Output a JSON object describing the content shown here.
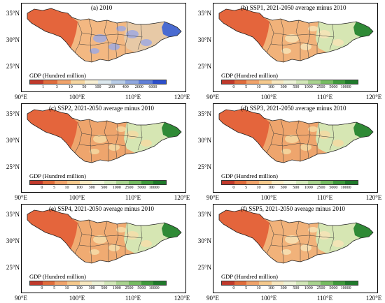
{
  "lat_labels": [
    "35°N",
    "30°N",
    "25°N"
  ],
  "lon_labels": [
    "90°E",
    "100°E",
    "110°E",
    "120°E"
  ],
  "legend_title": "GDP (Hundred million)",
  "panels": [
    {
      "id": "a",
      "title": "(a) 2010",
      "legend_colors": [
        "#c0392b",
        "#e06c3c",
        "#f0a36b",
        "#f5d5a0",
        "#f7efd4",
        "#dce8ee",
        "#b9cde7",
        "#8fa7df",
        "#5f7fd8",
        "#2c4fcc"
      ],
      "legend_ticks": [
        "1",
        "3",
        "10",
        "50",
        "100",
        "200",
        "400",
        "2000",
        "6000"
      ],
      "west_color": "#e4653c",
      "mid_color": "#f3b882",
      "east_color": "#e7c9a6",
      "tail_color": "#4a6bd1",
      "blob_color": "#9fa9e0"
    },
    {
      "id": "b",
      "title": "(b) SSP1, 2021-2050 average minus 2010",
      "legend_colors": [
        "#c0392b",
        "#e06c3c",
        "#f0a36b",
        "#f5c98d",
        "#f8e8c0",
        "#eef3d8",
        "#d2e7b8",
        "#a9d38f",
        "#76bc62",
        "#3f9a3c",
        "#1f7a2b"
      ],
      "legend_ticks": [
        "0",
        "5",
        "10",
        "100",
        "300",
        "500",
        "1000",
        "2500",
        "5000",
        "10000"
      ],
      "west_color": "#e4653c",
      "mid_color": "#f1b27a",
      "east_color": "#d6e6b3",
      "tail_color": "#2f8a36",
      "blob_color": "#f7e3b6"
    },
    {
      "id": "c",
      "title": "(c) SSP2, 2021-2050 average minus 2010",
      "legend_colors": [
        "#c0392b",
        "#e06c3c",
        "#f0a36b",
        "#f5c98d",
        "#f8e8c0",
        "#eef3d8",
        "#d2e7b8",
        "#a9d38f",
        "#76bc62",
        "#3f9a3c",
        "#1f7a2b"
      ],
      "legend_ticks": [
        "0",
        "5",
        "10",
        "100",
        "300",
        "500",
        "1000",
        "2500",
        "5000",
        "10000"
      ],
      "west_color": "#e4653c",
      "mid_color": "#eea56d",
      "east_color": "#d6e6b3",
      "tail_color": "#2f8a36",
      "blob_color": "#f5d9a2"
    },
    {
      "id": "d",
      "title": "(d) SSP3, 2021-2050 average minus 2010",
      "legend_colors": [
        "#c0392b",
        "#e06c3c",
        "#f0a36b",
        "#f5c98d",
        "#f8e8c0",
        "#eef3d8",
        "#d2e7b8",
        "#a9d38f",
        "#76bc62",
        "#3f9a3c",
        "#1f7a2b"
      ],
      "legend_ticks": [
        "0",
        "5",
        "10",
        "100",
        "300",
        "500",
        "1000",
        "2500",
        "5000",
        "10000"
      ],
      "west_color": "#e4653c",
      "mid_color": "#eea56d",
      "east_color": "#d6e6b3",
      "tail_color": "#2f8a36",
      "blob_color": "#f5d9a2"
    },
    {
      "id": "e",
      "title": "(e) SSP4, 2021-2050 average minus 2010",
      "legend_colors": [
        "#c0392b",
        "#e06c3c",
        "#f0a36b",
        "#f5c98d",
        "#f8e8c0",
        "#eef3d8",
        "#d2e7b8",
        "#a9d38f",
        "#76bc62",
        "#3f9a3c",
        "#1f7a2b"
      ],
      "legend_ticks": [
        "0",
        "5",
        "10",
        "100",
        "300",
        "500",
        "1000",
        "2500",
        "5000",
        "10000"
      ],
      "west_color": "#e4653c",
      "mid_color": "#f0ab72",
      "east_color": "#d6e6b3",
      "tail_color": "#2f8a36",
      "blob_color": "#f6dda9"
    },
    {
      "id": "f",
      "title": "(f) SSP5, 2021-2050 average minus 2010",
      "legend_colors": [
        "#c0392b",
        "#e06c3c",
        "#f0a36b",
        "#f5c98d",
        "#f8e8c0",
        "#eef3d8",
        "#d2e7b8",
        "#a9d38f",
        "#76bc62",
        "#3f9a3c",
        "#1f7a2b"
      ],
      "legend_ticks": [
        "0",
        "5",
        "10",
        "100",
        "300",
        "500",
        "1000",
        "2500",
        "5000",
        "10000"
      ],
      "west_color": "#e4653c",
      "mid_color": "#f1b27a",
      "east_color": "#d6e6b3",
      "tail_color": "#2f8a36",
      "blob_color": "#f7e3b6"
    }
  ]
}
